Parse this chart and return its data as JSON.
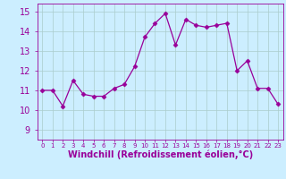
{
  "x": [
    0,
    1,
    2,
    3,
    4,
    5,
    6,
    7,
    8,
    9,
    10,
    11,
    12,
    13,
    14,
    15,
    16,
    17,
    18,
    19,
    20,
    21,
    22,
    23
  ],
  "y": [
    11.0,
    11.0,
    10.2,
    11.5,
    10.8,
    10.7,
    10.7,
    11.1,
    11.3,
    12.2,
    13.7,
    14.4,
    14.9,
    13.3,
    14.6,
    14.3,
    14.2,
    14.3,
    14.4,
    12.0,
    12.5,
    11.1,
    11.1,
    10.3
  ],
  "line_color": "#990099",
  "marker": "D",
  "marker_size": 2.5,
  "bg_color": "#cceeff",
  "grid_color": "#aacccc",
  "xlabel": "Windchill (Refroidissement éolien,°C)",
  "ylabel_ticks": [
    9,
    10,
    11,
    12,
    13,
    14,
    15
  ],
  "xtick_labels": [
    "0",
    "1",
    "2",
    "3",
    "4",
    "5",
    "6",
    "7",
    "8",
    "9",
    "10",
    "11",
    "12",
    "13",
    "14",
    "15",
    "16",
    "17",
    "18",
    "19",
    "20",
    "21",
    "22",
    "23"
  ],
  "ylim": [
    8.5,
    15.4
  ],
  "xlim": [
    -0.5,
    23.5
  ],
  "tick_color": "#990099",
  "label_color": "#990099",
  "ytick_fontsize": 7,
  "xtick_fontsize": 5,
  "xlabel_fontsize": 7
}
